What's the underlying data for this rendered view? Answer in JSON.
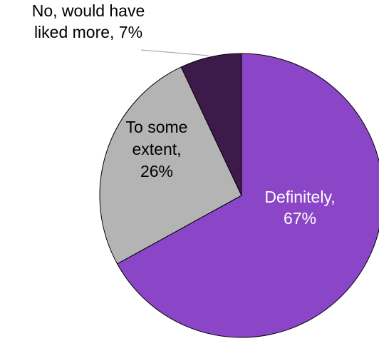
{
  "chart_data": {
    "type": "pie",
    "title": "",
    "start_angle_deg": 0,
    "direction": "clockwise",
    "slices": [
      {
        "label_lines": [
          "Definitely,",
          "67%"
        ],
        "category": "Definitely",
        "value": 67,
        "color": "#8b46c8",
        "label_color": "#ffffff"
      },
      {
        "label_lines": [
          "To some",
          "extent,",
          "26%"
        ],
        "category": "To some extent",
        "value": 26,
        "color": "#b4b4b4",
        "label_color": "#000000"
      },
      {
        "label_lines": [
          "No, would have",
          "liked more, 7%"
        ],
        "category": "No, would have liked more",
        "value": 7,
        "color": "#3c1a4a",
        "label_color": "#000000",
        "leader_line": true
      }
    ],
    "legend": "none"
  }
}
